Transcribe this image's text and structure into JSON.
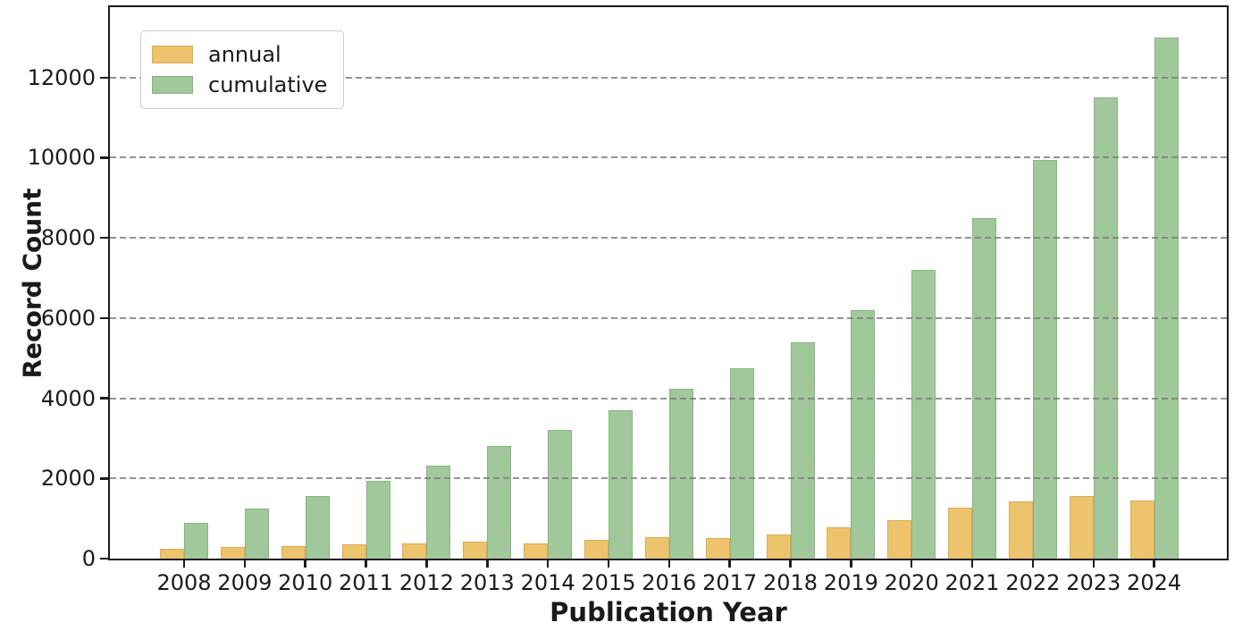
{
  "chart_data": {
    "type": "bar",
    "title": "",
    "xlabel": "Publication Year",
    "ylabel": "Record Count",
    "categories": [
      "2008",
      "2009",
      "2010",
      "2011",
      "2012",
      "2013",
      "2014",
      "2015",
      "2016",
      "2017",
      "2018",
      "2019",
      "2020",
      "2021",
      "2022",
      "2023",
      "2024"
    ],
    "series": [
      {
        "name": "annual",
        "fill_color": "#edc46d",
        "edge_color": "#ddab52",
        "values": [
          250,
          300,
          310,
          360,
          380,
          430,
          390,
          470,
          530,
          520,
          610,
          790,
          970,
          1260,
          1430,
          1550,
          1460
        ]
      },
      {
        "name": "cumulative",
        "fill_color": "#a1c89b",
        "edge_color": "#8ab383",
        "values": [
          900,
          1250,
          1560,
          1940,
          2320,
          2800,
          3200,
          3690,
          4240,
          4760,
          5400,
          6200,
          7200,
          8500,
          9950,
          11500,
          13000
        ]
      }
    ],
    "ylim": [
      0,
      13733
    ],
    "yticks": [
      0,
      2000,
      4000,
      6000,
      8000,
      10000,
      12000
    ],
    "grid": "horizontal-dashed",
    "grid_color": "#7a7a7a",
    "frame_color": "#1c1c1c",
    "background_color": "#ffffff",
    "legend_position": "upper-left"
  }
}
